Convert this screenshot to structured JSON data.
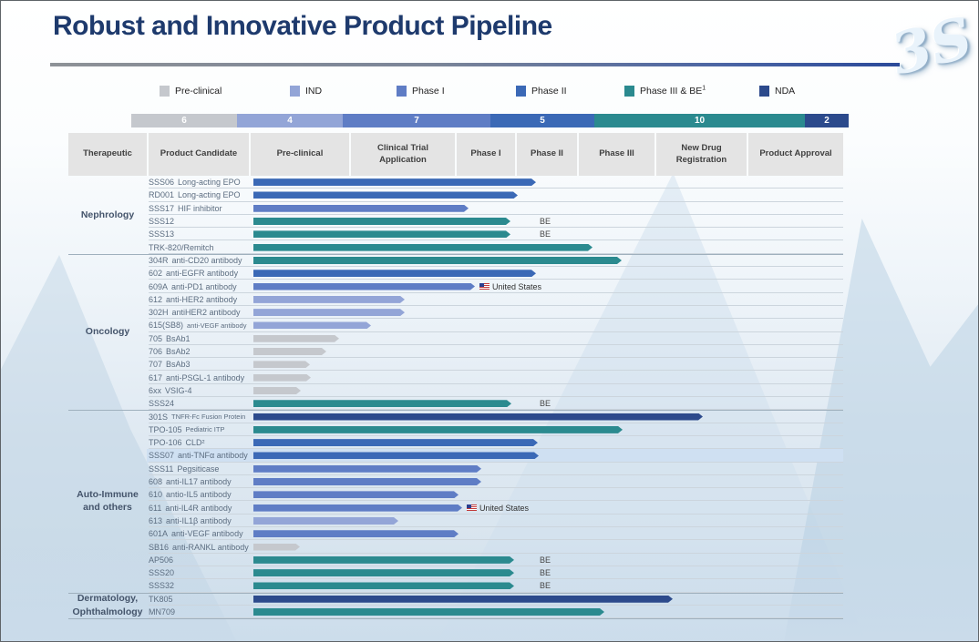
{
  "title": "Robust and Innovative Product Pipeline",
  "logo_text": "3S",
  "chart_data": {
    "type": "bar",
    "title": "Robust and Innovative Product Pipeline",
    "legend_position": "top",
    "columns": [
      "Therapeutic",
      "Product Candidate",
      "Pre-clinical",
      "Clinical Trial Application",
      "Phase I",
      "Phase II",
      "Phase III",
      "New Drug Registration",
      "Product Approval"
    ],
    "stages": [
      {
        "key": "preclinical",
        "label": "Pre-clinical",
        "color": "#c5c8cd",
        "count": "6"
      },
      {
        "key": "ind",
        "label": "IND",
        "color": "#93a5d7",
        "count": "4"
      },
      {
        "key": "phase1",
        "label": "Phase I",
        "color": "#5f7dc5",
        "count": "7"
      },
      {
        "key": "phase2",
        "label": "Phase II",
        "color": "#3b69b6",
        "count": "5"
      },
      {
        "key": "phase3",
        "label": "Phase III & BE",
        "sup": "1",
        "color": "#2b8a8f",
        "count": "10"
      },
      {
        "key": "nda",
        "label": "NDA",
        "color": "#2c4a8c",
        "count": "2"
      }
    ],
    "groups": [
      {
        "name_lines": [
          "Nephrology"
        ],
        "rows": [
          {
            "code": "SSS06",
            "desc": "Long-acting EPO",
            "stage": "phase2",
            "end": 588
          },
          {
            "code": "RD001",
            "desc": "Long-acting EPO",
            "stage": "phase2",
            "end": 568
          },
          {
            "code": "SSS17",
            "desc": "HIF inhibitor",
            "stage": "phase1",
            "end": 514
          },
          {
            "code": "SSS12",
            "desc": "",
            "stage": "phase3",
            "end": 560,
            "tag": "BE"
          },
          {
            "code": "SSS13",
            "desc": "",
            "stage": "phase3",
            "end": 560,
            "tag": "BE"
          },
          {
            "code": "TRK-820/Remitch",
            "desc": "",
            "stage": "phase3",
            "end": 650
          }
        ]
      },
      {
        "name_lines": [
          "Oncology"
        ],
        "rows": [
          {
            "code": "304R",
            "desc": "anti-CD20 antibody",
            "stage": "phase3",
            "end": 682
          },
          {
            "code": "602",
            "desc": "anti-EGFR antibody",
            "stage": "phase2",
            "end": 588
          },
          {
            "code": "609A",
            "desc": "anti-PD1 antibody",
            "stage": "phase1",
            "end": 521,
            "flag": "United States"
          },
          {
            "code": "612",
            "desc": "anti-HER2 antibody",
            "stage": "ind",
            "end": 444
          },
          {
            "code": "302H",
            "desc": "antiHER2 antibody",
            "stage": "ind",
            "end": 444
          },
          {
            "code": "615(SB8)",
            "desc": "anti-VEGF antibody",
            "stage": "ind",
            "end": 407,
            "small_desc": true
          },
          {
            "code": "705",
            "desc": "BsAb1",
            "stage": "preclinical",
            "end": 372
          },
          {
            "code": "706",
            "desc": "BsAb2",
            "stage": "preclinical",
            "end": 358
          },
          {
            "code": "707",
            "desc": "BsAb3",
            "stage": "preclinical",
            "end": 340
          },
          {
            "code": "617",
            "desc": "anti-PSGL-1 antibody",
            "stage": "preclinical",
            "end": 341
          },
          {
            "code": "6xx",
            "desc": "VSIG-4",
            "stage": "preclinical",
            "end": 330
          },
          {
            "code": "SSS24",
            "desc": "",
            "stage": "phase3",
            "end": 561,
            "tag": "BE"
          }
        ]
      },
      {
        "name_lines": [
          "Auto-Immune",
          "and others"
        ],
        "rows": [
          {
            "code": "301S",
            "desc": "TNFR-Fc Fusion Protein",
            "stage": "nda",
            "end": 771,
            "small_desc": true
          },
          {
            "code": "TPO-105",
            "desc": "Pediatric ITP",
            "stage": "phase3",
            "end": 683,
            "small_desc": true
          },
          {
            "code": "TPO-106",
            "desc": "CLD²",
            "stage": "phase2",
            "end": 590
          },
          {
            "code": "SSS07",
            "desc": "anti-TNFα antibody",
            "stage": "phase2",
            "end": 591,
            "highlight": true
          },
          {
            "code": "SSS11",
            "desc": "Pegsiticase",
            "stage": "phase1",
            "end": 528
          },
          {
            "code": "608",
            "desc": "anti-IL17 antibody",
            "stage": "phase1",
            "end": 528
          },
          {
            "code": "610",
            "desc": "antio-IL5 antibody",
            "stage": "phase1",
            "end": 503
          },
          {
            "code": "611",
            "desc": "anti-IL4R antibody",
            "stage": "phase1",
            "end": 507,
            "flag": "United States"
          },
          {
            "code": "613",
            "desc": "anti-IL1β antibody",
            "stage": "ind",
            "end": 437
          },
          {
            "code": "601A",
            "desc": "anti-VEGF antibody",
            "stage": "phase1",
            "end": 503
          },
          {
            "code": "SB16",
            "desc": "anti-RANKL antibody",
            "stage": "preclinical",
            "end": 329
          },
          {
            "code": "AP506",
            "desc": "",
            "stage": "phase3",
            "end": 564,
            "tag": "BE"
          },
          {
            "code": "SSS20",
            "desc": "",
            "stage": "phase3",
            "end": 564,
            "tag": "BE"
          },
          {
            "code": "SSS32",
            "desc": "",
            "stage": "phase3",
            "end": 564,
            "tag": "BE"
          }
        ]
      },
      {
        "name_lines": [
          "Dermatology,",
          "Ophthalmology"
        ],
        "rows": [
          {
            "code": "TK805",
            "desc": "",
            "stage": "nda",
            "end": 738
          },
          {
            "code": "MN709",
            "desc": "",
            "stage": "phase3",
            "end": 663
          }
        ]
      }
    ]
  }
}
